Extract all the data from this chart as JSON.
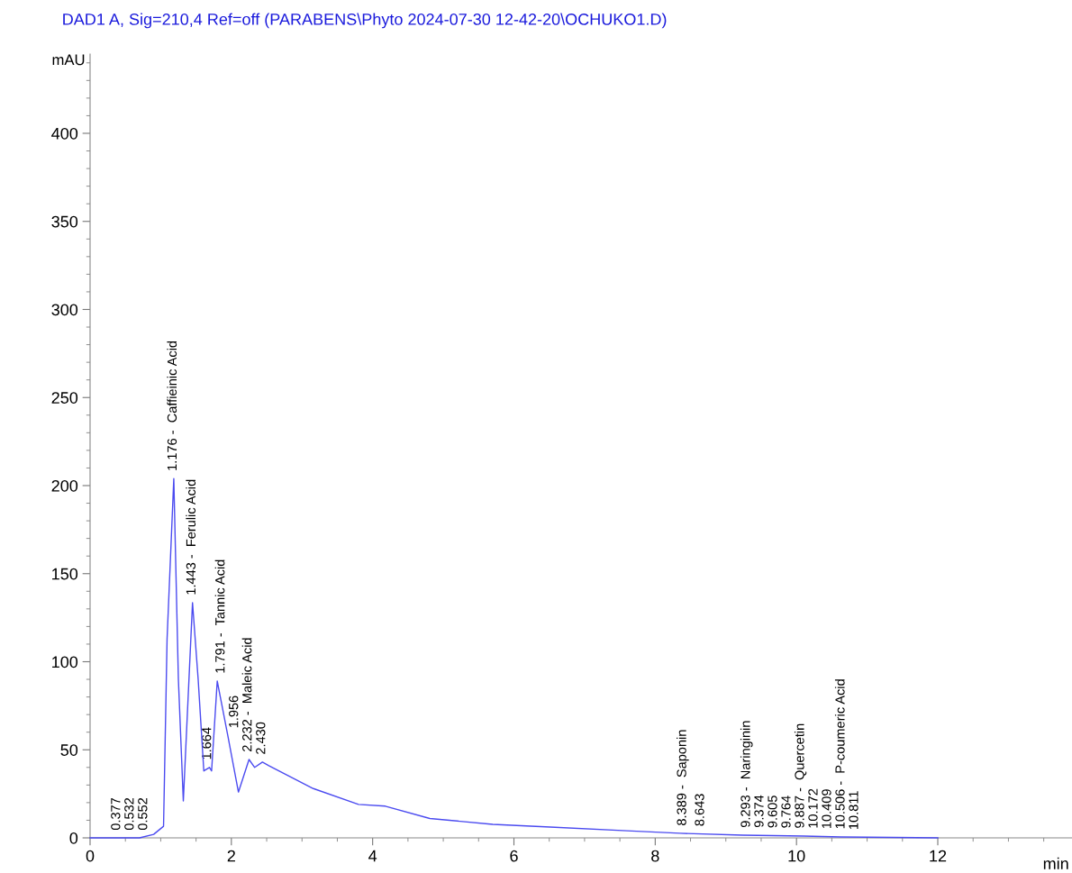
{
  "chart_data": {
    "type": "line",
    "subtitle": "DAD1 A, Sig=210,4 Ref=off (PARABENS\\Phyto 2024-07-30 12-42-20\\OCHUKO1.D)",
    "ylabel": "mAU",
    "xlabel": "min",
    "x": [
      0,
      0.5,
      0.7,
      0.9,
      1.04,
      1.09,
      1.185,
      1.25,
      1.32,
      1.45,
      1.53,
      1.61,
      1.69,
      1.72,
      1.8,
      1.95,
      2.1,
      2.25,
      2.33,
      2.44,
      2.53,
      3.16,
      3.8,
      4.18,
      4.81,
      5.7,
      6.58,
      7.6,
      8.35,
      9.24,
      10.1,
      10.63,
      12
    ],
    "series": [
      {
        "color": "#4b4bf0",
        "values": [
          0,
          0,
          0,
          2,
          6.6,
          113,
          204,
          90,
          21,
          133.5,
          90,
          38,
          40,
          38,
          89,
          58,
          26,
          44.5,
          40,
          43,
          41,
          28,
          19,
          18,
          11,
          7.7,
          6,
          4,
          2.6,
          1.5,
          1,
          0.5,
          0
        ]
      }
    ],
    "xlim": [
      0,
      13.9
    ],
    "xticks": [
      0,
      2,
      4,
      6,
      8,
      10,
      12
    ],
    "ylim": [
      0,
      445
    ],
    "yticks": [
      0,
      50,
      100,
      150,
      200,
      250,
      300,
      350,
      400
    ],
    "grid": false,
    "legend": false,
    "marker": "none",
    "line_style": "solid",
    "annotations": [
      {
        "text": "0.377",
        "x": 0.377,
        "y": 0
      },
      {
        "text": "0.532",
        "x": 0.532,
        "y": 0
      },
      {
        "text": "0.552",
        "x": 0.552,
        "y": 0
      },
      {
        "text": "1.176 -  Caffieinic Acid",
        "x": 1.176,
        "y": 204
      },
      {
        "text": "1.443 -  Ferulic Acid",
        "x": 1.443,
        "y": 133.5
      },
      {
        "text": "1.664",
        "x": 1.664,
        "y": 40
      },
      {
        "text": "1.791 -  Tannic Acid",
        "x": 1.791,
        "y": 89
      },
      {
        "text": "1.956",
        "x": 1.956,
        "y": 58
      },
      {
        "text": "2.232 -  Maleic Acid",
        "x": 2.232,
        "y": 44.5
      },
      {
        "text": "2.430",
        "x": 2.43,
        "y": 43
      },
      {
        "text": "8.389 -  Saponin",
        "x": 8.389,
        "y": 2.6
      },
      {
        "text": "8.643",
        "x": 8.643,
        "y": 2.3
      },
      {
        "text": "9.293 -  Naringinin",
        "x": 9.293,
        "y": 1.5
      },
      {
        "text": "9.374",
        "x": 9.374,
        "y": 1.5
      },
      {
        "text": "9.605",
        "x": 9.605,
        "y": 1.3
      },
      {
        "text": "9.764",
        "x": 9.764,
        "y": 1.2
      },
      {
        "text": "9.887 -  Quercetin",
        "x": 9.887,
        "y": 1.1
      },
      {
        "text": "10.172",
        "x": 10.172,
        "y": 1
      },
      {
        "text": "10.409",
        "x": 10.409,
        "y": 0.8
      },
      {
        "text": "10.506 -  P-coumeric Acid",
        "x": 10.506,
        "y": 0.7
      },
      {
        "text": "10.811",
        "x": 10.811,
        "y": 0.3
      }
    ]
  }
}
